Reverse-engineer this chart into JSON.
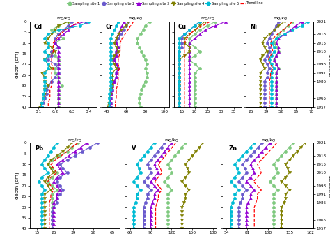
{
  "depths": [
    0,
    2,
    4,
    6,
    8,
    10,
    12,
    14,
    16,
    18,
    20,
    22,
    24,
    26,
    28,
    30,
    32,
    34,
    36,
    38,
    40
  ],
  "chron_ticks": [
    2021,
    2018,
    2015,
    2010,
    1998,
    1991,
    1986,
    1965,
    1957
  ],
  "chron_depths": [
    0,
    6,
    10,
    14,
    20,
    24,
    28,
    36,
    40
  ],
  "site_colors": [
    "#7fc97f",
    "#6a5acd",
    "#9400d3",
    "#808000",
    "#00bcd4"
  ],
  "site_markers": [
    "o",
    "o",
    "^",
    "v",
    "o"
  ],
  "site_names": [
    "Sampling site 1",
    "Sampling site 2",
    "Sampling site 3",
    "Sampling site 4",
    "Sampling site 5"
  ],
  "Cd": {
    "xlim": [
      0.05,
      0.45
    ],
    "xticks": [
      0.1,
      0.2,
      0.3,
      0.4
    ],
    "s1": [
      0.28,
      0.22,
      0.18,
      0.22,
      0.25,
      0.2,
      0.22,
      0.18,
      0.2,
      0.22,
      0.22,
      0.2,
      0.2,
      0.22,
      0.22,
      0.24,
      0.22,
      0.22,
      0.22,
      0.22,
      0.22
    ],
    "s2": [
      0.3,
      0.28,
      0.25,
      0.22,
      0.2,
      0.2,
      0.22,
      0.18,
      0.18,
      0.16,
      0.2,
      0.22,
      0.22,
      0.2,
      0.18,
      0.16,
      0.15,
      0.15,
      0.14,
      0.13,
      0.12
    ],
    "s3": [
      0.38,
      0.3,
      0.28,
      0.25,
      0.22,
      0.2,
      0.22,
      0.22,
      0.22,
      0.22,
      0.22,
      0.22,
      0.22,
      0.22,
      0.22,
      0.22,
      0.22,
      0.22,
      0.22,
      0.22,
      0.22
    ],
    "s4": [
      0.28,
      0.22,
      0.2,
      0.18,
      0.16,
      0.14,
      0.18,
      0.2,
      0.16,
      0.14,
      0.16,
      0.18,
      0.12,
      0.14,
      0.14,
      0.16,
      0.14,
      0.14,
      0.13,
      0.12,
      0.11
    ],
    "s5": [
      0.4,
      0.35,
      0.22,
      0.16,
      0.14,
      0.16,
      0.16,
      0.14,
      0.16,
      0.14,
      0.16,
      0.16,
      0.14,
      0.14,
      0.14,
      0.14,
      0.14,
      0.13,
      0.13,
      0.12,
      0.12
    ],
    "trend": [
      0.35,
      0.3,
      0.26,
      0.23,
      0.21,
      0.19,
      0.19,
      0.19,
      0.18,
      0.18,
      0.18,
      0.19,
      0.18,
      0.18,
      0.18,
      0.18,
      0.17,
      0.17,
      0.17,
      0.16,
      0.16
    ]
  },
  "Cr": {
    "xlim": [
      35,
      105
    ],
    "xticks": [
      40,
      60,
      80,
      100
    ],
    "s1": [
      85,
      80,
      78,
      75,
      72,
      72,
      74,
      76,
      78,
      80,
      82,
      80,
      82,
      82,
      80,
      78,
      76,
      75,
      74,
      74,
      75
    ],
    "s2": [
      62,
      60,
      58,
      55,
      52,
      50,
      52,
      50,
      50,
      48,
      50,
      52,
      50,
      50,
      48,
      46,
      46,
      45,
      44,
      44,
      44
    ],
    "s3": [
      58,
      56,
      54,
      52,
      50,
      50,
      52,
      50,
      50,
      48,
      50,
      52,
      50,
      50,
      48,
      46,
      46,
      45,
      44,
      44,
      44
    ],
    "s4": [
      62,
      60,
      55,
      52,
      50,
      48,
      50,
      52,
      48,
      46,
      48,
      50,
      46,
      46,
      46,
      46,
      44,
      44,
      43,
      42,
      41
    ],
    "s5": [
      52,
      50,
      48,
      46,
      44,
      44,
      44,
      44,
      44,
      44,
      44,
      44,
      44,
      44,
      44,
      44,
      44,
      43,
      43,
      43,
      43
    ],
    "trend": [
      68,
      65,
      62,
      59,
      56,
      54,
      54,
      54,
      53,
      52,
      52,
      53,
      52,
      52,
      52,
      51,
      50,
      50,
      50,
      49,
      49
    ]
  },
  "Cu": {
    "xlim": [
      12,
      38
    ],
    "xticks": [
      15,
      20,
      25,
      30,
      35
    ],
    "s1": [
      28,
      25,
      22,
      20,
      18,
      18,
      20,
      22,
      20,
      18,
      20,
      22,
      20,
      20,
      20,
      20,
      20,
      20,
      20,
      20,
      20
    ],
    "s2": [
      22,
      20,
      18,
      16,
      15,
      15,
      15,
      14,
      14,
      14,
      14,
      14,
      14,
      14,
      14,
      14,
      14,
      14,
      14,
      14,
      14
    ],
    "s3": [
      32,
      28,
      24,
      22,
      20,
      18,
      18,
      18,
      18,
      18,
      18,
      18,
      18,
      18,
      18,
      18,
      18,
      18,
      18,
      18,
      18
    ],
    "s4": [
      24,
      22,
      20,
      18,
      16,
      16,
      18,
      18,
      16,
      14,
      14,
      14,
      14,
      14,
      14,
      14,
      14,
      14,
      14,
      14,
      14
    ],
    "s5": [
      22,
      20,
      18,
      16,
      14,
      14,
      14,
      14,
      14,
      14,
      14,
      14,
      14,
      14,
      14,
      14,
      14,
      14,
      14,
      14,
      14
    ],
    "trend": [
      26,
      23,
      20,
      18,
      17,
      16,
      16,
      16,
      16,
      16,
      16,
      16,
      16,
      16,
      16,
      16,
      16,
      16,
      16,
      16,
      16
    ]
  },
  "Ni": {
    "xlim": [
      22,
      80
    ],
    "xticks": [
      26,
      39,
      52,
      65,
      78
    ],
    "s1": [
      62,
      58,
      54,
      50,
      48,
      46,
      48,
      50,
      48,
      46,
      48,
      50,
      48,
      48,
      48,
      48,
      48,
      48,
      48,
      48,
      48
    ],
    "s2": [
      50,
      48,
      46,
      44,
      42,
      40,
      42,
      42,
      40,
      38,
      40,
      42,
      40,
      40,
      38,
      38,
      38,
      38,
      38,
      38,
      38
    ],
    "s3": [
      70,
      65,
      60,
      55,
      50,
      48,
      50,
      50,
      48,
      46,
      48,
      50,
      48,
      48,
      48,
      48,
      48,
      48,
      48,
      48,
      48
    ],
    "s4": [
      55,
      50,
      46,
      42,
      38,
      36,
      38,
      40,
      36,
      34,
      36,
      38,
      34,
      34,
      34,
      34,
      34,
      34,
      34,
      34,
      34
    ],
    "s5": [
      75,
      70,
      62,
      55,
      48,
      44,
      46,
      46,
      44,
      42,
      44,
      46,
      44,
      44,
      44,
      44,
      44,
      44,
      44,
      44,
      44
    ],
    "trend": [
      62,
      58,
      54,
      49,
      45,
      43,
      44,
      45,
      43,
      41,
      43,
      45,
      43,
      43,
      42,
      42,
      42,
      42,
      42,
      42,
      42
    ]
  },
  "Pb": {
    "xlim": [
      10,
      70
    ],
    "xticks": [
      15,
      26,
      39,
      52,
      65
    ],
    "s1": [
      42,
      38,
      35,
      30,
      25,
      22,
      25,
      28,
      25,
      22,
      25,
      28,
      25,
      25,
      25,
      25,
      25,
      25,
      25,
      25,
      25
    ],
    "s2": [
      55,
      50,
      45,
      40,
      35,
      30,
      32,
      35,
      30,
      28,
      30,
      32,
      30,
      28,
      28,
      26,
      25,
      25,
      25,
      25,
      25
    ],
    "s3": [
      48,
      44,
      40,
      36,
      32,
      28,
      30,
      32,
      28,
      26,
      28,
      30,
      28,
      28,
      26,
      26,
      26,
      26,
      26,
      26,
      26
    ],
    "s4": [
      38,
      35,
      32,
      28,
      24,
      22,
      24,
      26,
      22,
      20,
      22,
      24,
      20,
      20,
      20,
      20,
      20,
      20,
      20,
      20,
      20
    ],
    "s5": [
      28,
      26,
      24,
      22,
      20,
      18,
      20,
      22,
      18,
      16,
      18,
      20,
      18,
      18,
      18,
      18,
      18,
      18,
      18,
      18,
      18
    ],
    "trend": [
      42,
      38,
      35,
      31,
      27,
      24,
      26,
      28,
      24,
      22,
      24,
      26,
      24,
      24,
      23,
      23,
      23,
      23,
      23,
      23,
      23
    ]
  },
  "V": {
    "xlim": [
      55,
      185
    ],
    "xticks": [
      60,
      90,
      120,
      150,
      180
    ],
    "s1": [
      140,
      135,
      130,
      125,
      120,
      115,
      118,
      120,
      115,
      110,
      115,
      120,
      115,
      115,
      115,
      115,
      115,
      115,
      115,
      115,
      115
    ],
    "s2": [
      110,
      105,
      100,
      95,
      90,
      85,
      88,
      90,
      85,
      80,
      85,
      90,
      85,
      85,
      82,
      80,
      80,
      80,
      80,
      80,
      80
    ],
    "s3": [
      120,
      115,
      110,
      105,
      100,
      95,
      98,
      100,
      95,
      90,
      95,
      100,
      95,
      95,
      92,
      90,
      90,
      90,
      90,
      90,
      90
    ],
    "s4": [
      165,
      160,
      155,
      150,
      145,
      140,
      143,
      145,
      140,
      135,
      140,
      145,
      140,
      140,
      138,
      135,
      135,
      135,
      135,
      135,
      135
    ],
    "s5": [
      95,
      90,
      85,
      80,
      75,
      70,
      73,
      75,
      70,
      65,
      70,
      75,
      70,
      70,
      68,
      65,
      65,
      65,
      65,
      65,
      65
    ],
    "trend": [
      126,
      121,
      116,
      111,
      106,
      101,
      104,
      106,
      101,
      96,
      101,
      106,
      101,
      101,
      99,
      97,
      97,
      97,
      97,
      97,
      97
    ]
  },
  "Zn": {
    "xlim": [
      50,
      166
    ],
    "xticks": [
      54,
      81,
      108,
      135,
      162
    ],
    "s1": [
      140,
      135,
      130,
      125,
      120,
      115,
      118,
      120,
      115,
      110,
      115,
      120,
      115,
      115,
      115,
      115,
      115,
      115,
      115,
      115,
      115
    ],
    "s2": [
      100,
      95,
      90,
      85,
      80,
      75,
      78,
      80,
      75,
      70,
      75,
      80,
      75,
      75,
      72,
      70,
      70,
      70,
      70,
      70,
      70
    ],
    "s3": [
      110,
      105,
      100,
      95,
      90,
      85,
      88,
      90,
      85,
      80,
      85,
      90,
      85,
      85,
      82,
      80,
      80,
      80,
      80,
      80,
      80
    ],
    "s4": [
      155,
      150,
      145,
      140,
      135,
      130,
      133,
      135,
      130,
      125,
      130,
      135,
      130,
      130,
      128,
      125,
      125,
      125,
      125,
      125,
      125
    ],
    "s5": [
      90,
      85,
      80,
      75,
      70,
      65,
      68,
      70,
      65,
      60,
      65,
      70,
      65,
      65,
      62,
      60,
      60,
      60,
      60,
      60,
      60
    ],
    "trend": [
      119,
      114,
      109,
      104,
      99,
      94,
      97,
      99,
      94,
      89,
      94,
      99,
      94,
      94,
      92,
      90,
      90,
      90,
      90,
      90,
      90
    ]
  },
  "ylabel": "depth (cm)",
  "xlabel_unit": "mg/kg"
}
